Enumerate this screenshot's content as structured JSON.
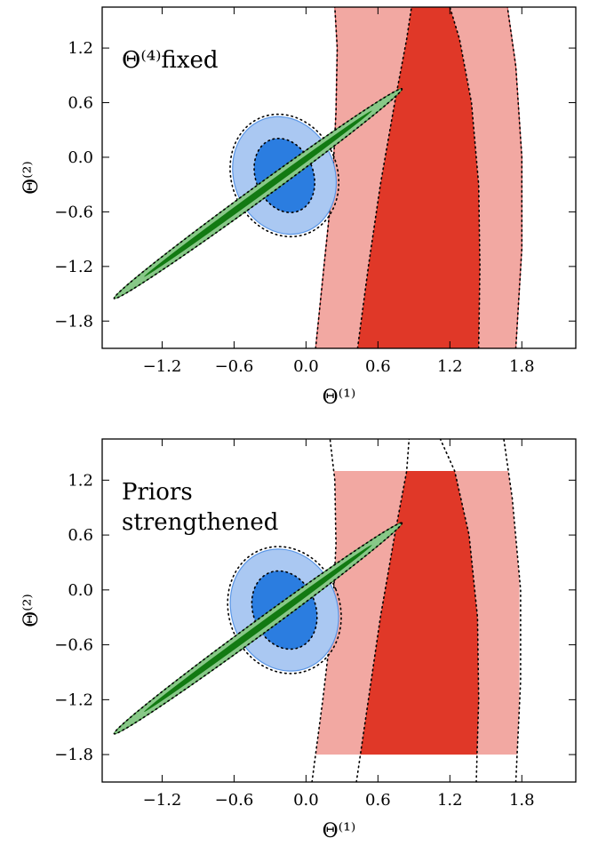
{
  "chart_data": [
    {
      "type": "contour",
      "annotation": [
        "Θ⁽⁴⁾fixed"
      ],
      "xlabel": "Θ⁽¹⁾",
      "ylabel": "Θ⁽²⁾",
      "xlim": [
        -1.7,
        2.25
      ],
      "ylim": [
        -2.1,
        1.65
      ],
      "xticks": [
        -1.2,
        -0.6,
        0.0,
        0.6,
        1.2,
        1.8
      ],
      "xtick_labels": [
        "−1.2",
        "−0.6",
        "0.0",
        "0.6",
        "1.2",
        "1.8"
      ],
      "yticks": [
        1.2,
        0.6,
        0.0,
        -0.6,
        -1.2,
        -1.8
      ],
      "ytick_labels": [
        "1.2",
        "0.6",
        "0.0",
        "−0.6",
        "−1.2",
        "−1.8"
      ],
      "grid": false,
      "series": [
        {
          "color_outer": "#f2a8a2",
          "color_inner": "#e03828",
          "outline": "#e06060",
          "outer_left": [
            [
              0.08,
              -2.1
            ],
            [
              0.15,
              -1.2
            ],
            [
              0.22,
              -0.3
            ],
            [
              0.25,
              0.5
            ],
            [
              0.26,
              1.2
            ],
            [
              0.24,
              1.65
            ]
          ],
          "outer_right": [
            [
              1.75,
              -2.1
            ],
            [
              1.8,
              -1.0
            ],
            [
              1.8,
              0.0
            ],
            [
              1.75,
              1.0
            ],
            [
              1.68,
              1.65
            ]
          ],
          "inner_left": [
            [
              0.43,
              -2.1
            ],
            [
              0.52,
              -1.2
            ],
            [
              0.62,
              -0.3
            ],
            [
              0.74,
              0.6
            ],
            [
              0.84,
              1.3
            ],
            [
              0.88,
              1.65
            ]
          ],
          "inner_right": [
            [
              1.44,
              -2.1
            ],
            [
              1.45,
              -1.2
            ],
            [
              1.44,
              -0.3
            ],
            [
              1.38,
              0.6
            ],
            [
              1.28,
              1.3
            ],
            [
              1.2,
              1.65
            ]
          ]
        },
        {
          "color_outer": "#aac8f2",
          "color_inner": "#2b7de0",
          "outline": "#5a96e6",
          "center": [
            -0.18,
            -0.2
          ],
          "semi_axes_outer": [
            0.42,
            0.66
          ],
          "semi_axes_inner": [
            0.24,
            0.42
          ],
          "tilt_deg": -22
        },
        {
          "color_outer": "#88c888",
          "color_inner": "#127a12",
          "outline": "#3a8a3a",
          "center": [
            -0.4,
            -0.4
          ],
          "semi_axes_outer": [
            1.2,
            0.08
          ],
          "semi_axes_inner": [
            0.95,
            0.035
          ],
          "slope": 0.96
        }
      ]
    },
    {
      "type": "contour",
      "annotation": [
        "Priors",
        "strengthened"
      ],
      "xlabel": "Θ⁽¹⁾",
      "ylabel": "Θ⁽²⁾",
      "xlim": [
        -1.7,
        2.25
      ],
      "ylim": [
        -2.1,
        1.65
      ],
      "xticks": [
        -1.2,
        -0.6,
        0.0,
        0.6,
        1.2,
        1.8
      ],
      "xtick_labels": [
        "−1.2",
        "−0.6",
        "0.0",
        "0.6",
        "1.2",
        "1.8"
      ],
      "yticks": [
        1.2,
        0.6,
        0.0,
        -0.6,
        -1.2,
        -1.8
      ],
      "ytick_labels": [
        "1.2",
        "0.6",
        "0.0",
        "−0.6",
        "−1.2",
        "−1.8"
      ],
      "grid": false,
      "prior_box": {
        "x": [
          0.08,
          1.78
        ],
        "y": [
          -1.8,
          1.3
        ]
      },
      "series": [
        {
          "color_outer": "#f2a8a2",
          "color_inner": "#e03828",
          "outline": "#e06060",
          "outer_left": [
            [
              0.05,
              -2.1
            ],
            [
              0.14,
              -1.2
            ],
            [
              0.22,
              -0.3
            ],
            [
              0.25,
              0.5
            ],
            [
              0.24,
              1.2
            ],
            [
              0.2,
              1.65
            ]
          ],
          "outer_right": [
            [
              1.75,
              -2.1
            ],
            [
              1.79,
              -1.0
            ],
            [
              1.79,
              0.0
            ],
            [
              1.72,
              1.0
            ],
            [
              1.65,
              1.65
            ]
          ],
          "inner_left": [
            [
              0.42,
              -2.1
            ],
            [
              0.52,
              -1.2
            ],
            [
              0.62,
              -0.3
            ],
            [
              0.74,
              0.6
            ],
            [
              0.84,
              1.3
            ],
            [
              0.86,
              1.65
            ]
          ],
          "inner_right": [
            [
              1.42,
              -2.1
            ],
            [
              1.44,
              -1.2
            ],
            [
              1.43,
              -0.3
            ],
            [
              1.36,
              0.6
            ],
            [
              1.24,
              1.3
            ],
            [
              1.12,
              1.65
            ]
          ]
        },
        {
          "color_outer": "#aac8f2",
          "color_inner": "#2b7de0",
          "outline": "#5a96e6",
          "center": [
            -0.18,
            -0.22
          ],
          "semi_axes_outer": [
            0.44,
            0.68
          ],
          "semi_axes_inner": [
            0.26,
            0.44
          ],
          "tilt_deg": -22
        },
        {
          "color_outer": "#88c888",
          "color_inner": "#127a12",
          "outline": "#3a8a3a",
          "center": [
            -0.4,
            -0.42
          ],
          "semi_axes_outer": [
            1.2,
            0.08
          ],
          "semi_axes_inner": [
            0.95,
            0.035
          ],
          "slope": 0.96
        }
      ]
    }
  ]
}
